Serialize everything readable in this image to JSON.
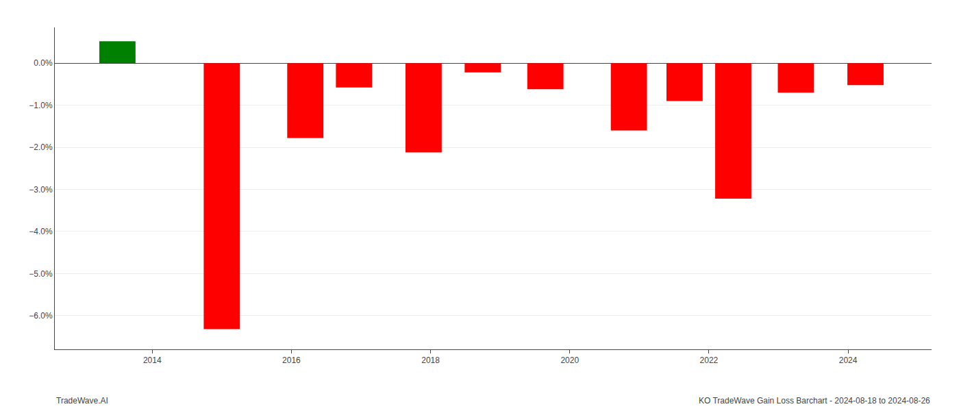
{
  "chart_data": {
    "type": "bar",
    "x": [
      2013.5,
      2015.0,
      2016.2,
      2016.9,
      2017.9,
      2018.75,
      2019.65,
      2020.85,
      2021.65,
      2022.35,
      2023.25,
      2024.25
    ],
    "values": [
      0.52,
      -6.32,
      -1.78,
      -0.58,
      -2.12,
      -0.22,
      -0.62,
      -1.6,
      -0.9,
      -3.22,
      -0.7,
      -0.52
    ],
    "colors": [
      "#008000",
      "#ff0000",
      "#ff0000",
      "#ff0000",
      "#ff0000",
      "#ff0000",
      "#ff0000",
      "#ff0000",
      "#ff0000",
      "#ff0000",
      "#ff0000",
      "#ff0000"
    ],
    "xlim": [
      2012.6,
      2025.2
    ],
    "ylim": [
      -6.8,
      0.85
    ],
    "xticks": [
      2014,
      2016,
      2018,
      2020,
      2022,
      2024
    ],
    "yticks": [
      {
        "value": 0.0,
        "label": "0.0%"
      },
      {
        "value": -1.0,
        "label": "−1.0%"
      },
      {
        "value": -2.0,
        "label": "−2.0%"
      },
      {
        "value": -3.0,
        "label": "−3.0%"
      },
      {
        "value": -4.0,
        "label": "−4.0%"
      },
      {
        "value": -5.0,
        "label": "−5.0%"
      },
      {
        "value": -6.0,
        "label": "−6.0%"
      }
    ],
    "grid": true,
    "annotations": [
      "TradeWave.AI",
      "KO TradeWave Gain Loss Barchart - 2024-08-18 to 2024-08-26"
    ]
  }
}
